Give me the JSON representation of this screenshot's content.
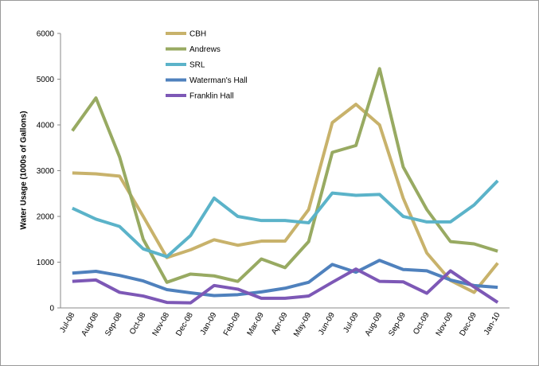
{
  "chart_data": {
    "type": "line",
    "y_label": "Water Usage (1000s of Gallons)",
    "categories": [
      "Jul-08",
      "Aug-08",
      "Sep-08",
      "Oct-08",
      "Nov-08",
      "Dec-08",
      "Jan-09",
      "Feb-09",
      "Mar-09",
      "Apr-09",
      "May-09",
      "Jun-09",
      "Jul-09",
      "Aug-09",
      "Sep-09",
      "Oct-09",
      "Nov-09",
      "Dec-09",
      "Jan-10"
    ],
    "series": [
      {
        "name": "CBH",
        "color": "#c8b26b",
        "values": [
          2950,
          2930,
          2880,
          2000,
          1100,
          1270,
          1490,
          1370,
          1460,
          1460,
          2150,
          4050,
          4450,
          4000,
          2400,
          1200,
          600,
          340,
          980
        ]
      },
      {
        "name": "Andrews",
        "color": "#98aa62",
        "values": [
          3870,
          4590,
          3300,
          1500,
          560,
          740,
          700,
          580,
          1070,
          880,
          1450,
          3400,
          3550,
          5230,
          3080,
          2150,
          1450,
          1400,
          1240
        ]
      },
      {
        "name": "SRL",
        "color": "#5bb3c9",
        "values": [
          2180,
          1940,
          1780,
          1290,
          1120,
          1580,
          2400,
          2000,
          1910,
          1910,
          1860,
          2510,
          2460,
          2480,
          2000,
          1880,
          1880,
          2250,
          2780
        ]
      },
      {
        "name": "Waterman's Hall",
        "color": "#4f81bd",
        "values": [
          760,
          800,
          710,
          590,
          400,
          330,
          270,
          290,
          350,
          430,
          560,
          950,
          780,
          1040,
          840,
          810,
          610,
          490,
          450
        ]
      },
      {
        "name": "Franklin Hall",
        "color": "#7d58b6",
        "values": [
          580,
          610,
          340,
          260,
          120,
          110,
          490,
          410,
          210,
          210,
          260,
          560,
          850,
          580,
          570,
          320,
          810,
          460,
          120
        ]
      }
    ],
    "ylim": [
      0,
      6000
    ],
    "yticks": [
      0,
      1000,
      2000,
      3000,
      4000,
      5000,
      6000
    ],
    "grid": false
  }
}
